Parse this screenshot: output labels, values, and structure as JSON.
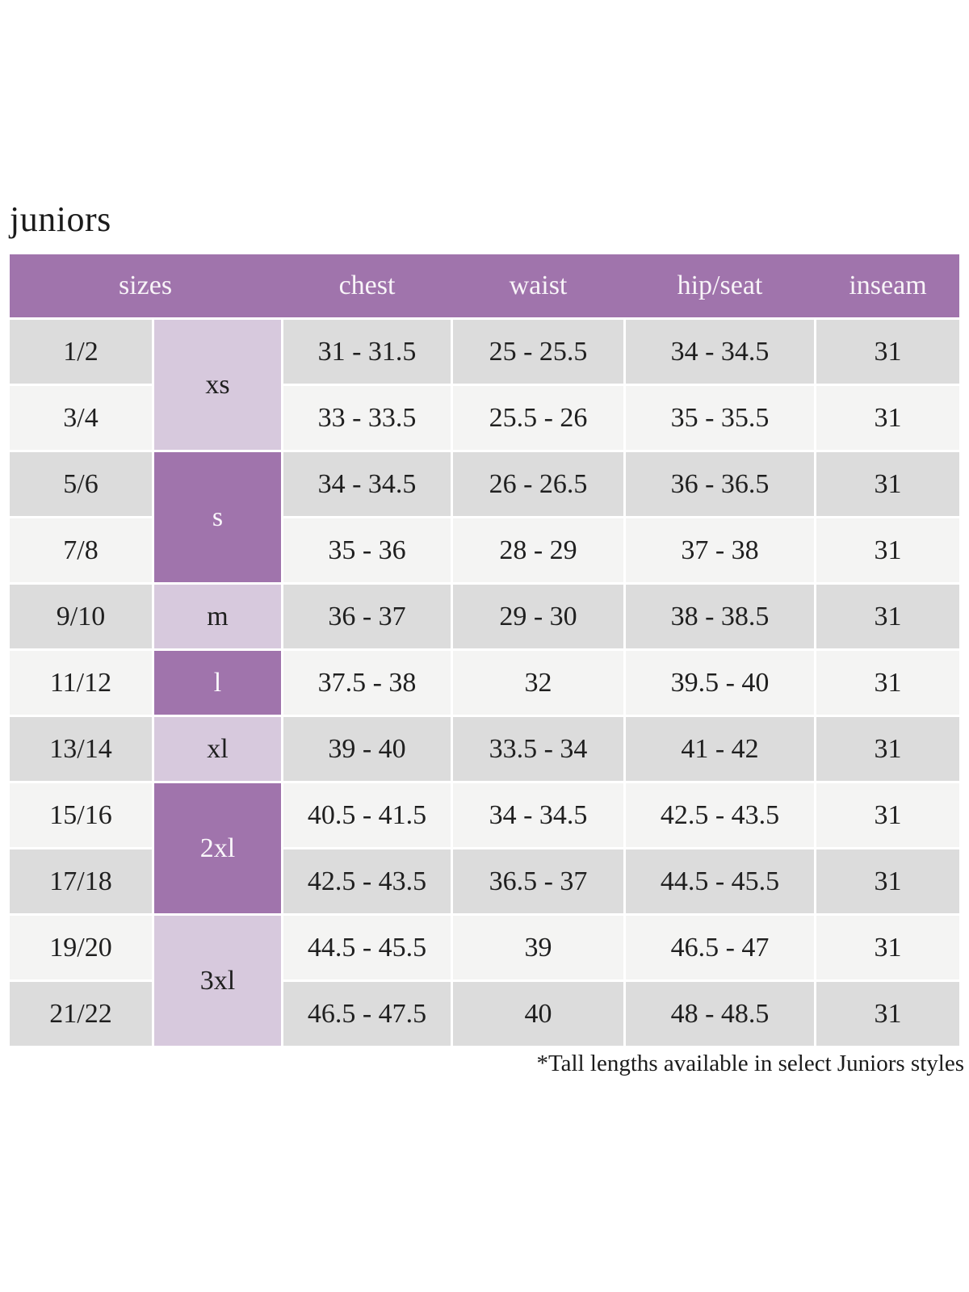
{
  "title": "juniors",
  "footnote": "*Tall lengths available in select Juniors styles",
  "table": {
    "headers": [
      "sizes",
      "chest",
      "waist",
      "hip/seat",
      "inseam"
    ],
    "size_groups": [
      {
        "label": "xs",
        "row_span": 2
      },
      {
        "label": "s",
        "row_span": 2
      },
      {
        "label": "m",
        "row_span": 1
      },
      {
        "label": "l",
        "row_span": 1
      },
      {
        "label": "xl",
        "row_span": 1
      },
      {
        "label": "2xl",
        "row_span": 2
      },
      {
        "label": "3xl",
        "row_span": 2
      }
    ],
    "rows": [
      {
        "size": "1/2",
        "chest": "31 - 31.5",
        "waist": "25 - 25.5",
        "hip_seat": "34 - 34.5",
        "inseam": "31"
      },
      {
        "size": "3/4",
        "chest": "33 - 33.5",
        "waist": "25.5 - 26",
        "hip_seat": "35 - 35.5",
        "inseam": "31"
      },
      {
        "size": "5/6",
        "chest": "34 - 34.5",
        "waist": "26 - 26.5",
        "hip_seat": "36 - 36.5",
        "inseam": "31"
      },
      {
        "size": "7/8",
        "chest": "35 - 36",
        "waist": "28 - 29",
        "hip_seat": "37 - 38",
        "inseam": "31"
      },
      {
        "size": "9/10",
        "chest": "36 - 37",
        "waist": "29 - 30",
        "hip_seat": "38 - 38.5",
        "inseam": "31"
      },
      {
        "size": "11/12",
        "chest": "37.5 - 38",
        "waist": "32",
        "hip_seat": "39.5 - 40",
        "inseam": "31"
      },
      {
        "size": "13/14",
        "chest": "39 - 40",
        "waist": "33.5 - 34",
        "hip_seat": "41 - 42",
        "inseam": "31"
      },
      {
        "size": "15/16",
        "chest": "40.5 - 41.5",
        "waist": "34 - 34.5",
        "hip_seat": "42.5 - 43.5",
        "inseam": "31"
      },
      {
        "size": "17/18",
        "chest": "42.5 - 43.5",
        "waist": "36.5 - 37",
        "hip_seat": "44.5 - 45.5",
        "inseam": "31"
      },
      {
        "size": "19/20",
        "chest": "44.5 - 45.5",
        "waist": "39",
        "hip_seat": "46.5 - 47",
        "inseam": "31"
      },
      {
        "size": "21/22",
        "chest": "46.5 - 47.5",
        "waist": "40",
        "hip_seat": "48 - 48.5",
        "inseam": "31"
      }
    ]
  },
  "colors": {
    "header_purple": "#a074ac",
    "light_purple": "#d7c9dd",
    "row_gray_dark": "#dcdcdc",
    "row_gray_light": "#f4f4f3",
    "header_text": "#f8f4f8",
    "body_text": "#1f1f1f"
  }
}
